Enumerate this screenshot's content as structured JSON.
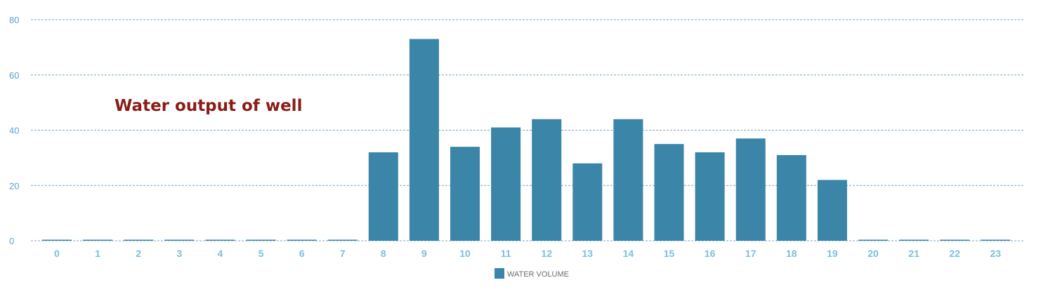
{
  "chart_data": {
    "type": "bar",
    "title": "Water output of well",
    "categories": [
      "0",
      "1",
      "2",
      "3",
      "4",
      "5",
      "6",
      "7",
      "8",
      "9",
      "10",
      "11",
      "12",
      "13",
      "14",
      "15",
      "16",
      "17",
      "18",
      "19",
      "20",
      "21",
      "22",
      "23"
    ],
    "series": [
      {
        "name": "WATER VOLUME",
        "values": [
          0,
          0,
          0,
          0,
          0,
          0,
          0,
          0,
          32,
          73,
          34,
          41,
          44,
          28,
          44,
          35,
          32,
          37,
          31,
          22,
          0,
          0,
          0,
          0
        ],
        "color": "#3a85a8"
      }
    ],
    "ylim": [
      0,
      80
    ],
    "yticks": [
      0,
      20,
      40,
      60,
      80
    ],
    "grid": true,
    "legend_position": "bottom-center"
  }
}
